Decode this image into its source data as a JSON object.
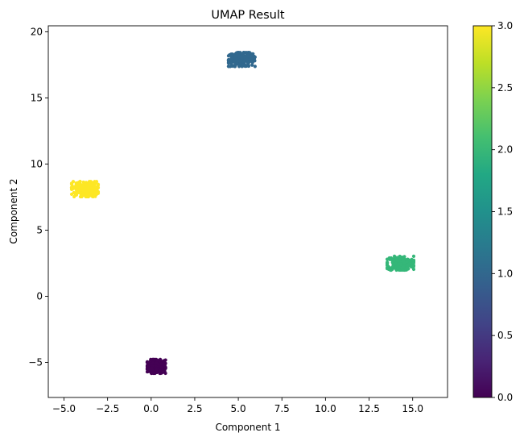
{
  "chart_data": {
    "type": "scatter",
    "title": "UMAP Result",
    "xlabel": "Component 1",
    "ylabel": "Component 2",
    "xlim": [
      -5.9,
      17.0
    ],
    "ylim": [
      -7.65,
      20.45
    ],
    "xticks": [
      -5.0,
      -2.5,
      0.0,
      2.5,
      5.0,
      7.5,
      10.0,
      12.5,
      15.0
    ],
    "xtick_labels": [
      "−5.0",
      "−2.5",
      "0.0",
      "2.5",
      "5.0",
      "7.5",
      "10.0",
      "12.5",
      "15.0"
    ],
    "yticks": [
      -5,
      0,
      5,
      10,
      15,
      20
    ],
    "ytick_labels": [
      "−5",
      "0",
      "5",
      "10",
      "15",
      "20"
    ],
    "grid": false,
    "legend": "none",
    "colorbar": {
      "range": [
        0.0,
        3.0
      ],
      "ticks": [
        0.0,
        0.5,
        1.0,
        1.5,
        2.0,
        2.5,
        3.0
      ],
      "tick_labels": [
        "0.0",
        "0.5",
        "1.0",
        "1.5",
        "2.0",
        "2.5",
        "3.0"
      ],
      "colormap": "viridis"
    },
    "clusters": [
      {
        "label": 0,
        "center": [
          0.3,
          -5.3
        ],
        "spread": [
          0.55,
          0.55
        ],
        "color": "#440154"
      },
      {
        "label": 1,
        "center": [
          5.2,
          17.9
        ],
        "spread": [
          0.8,
          0.55
        ],
        "color": "#31688e"
      },
      {
        "label": 2,
        "center": [
          14.3,
          2.5
        ],
        "spread": [
          0.8,
          0.55
        ],
        "color": "#35b779"
      },
      {
        "label": 3,
        "center": [
          -3.8,
          8.1
        ],
        "spread": [
          0.8,
          0.6
        ],
        "color": "#fde725"
      }
    ],
    "points_per_cluster": 250
  }
}
